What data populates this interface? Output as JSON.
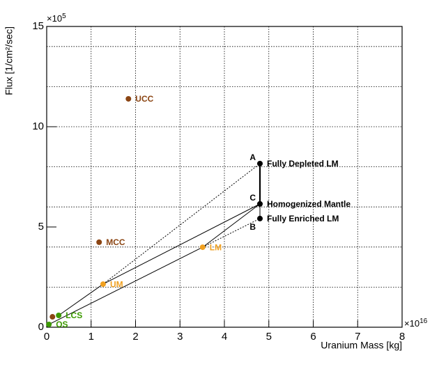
{
  "chart_data": {
    "type": "scatter",
    "x_label": "Uranium Mass [kg]",
    "y_label": "Flux [1/cm²/sec]",
    "x_multiplier": {
      "base": "×10",
      "exp": "16"
    },
    "y_multiplier": {
      "base": "×10",
      "exp": "5"
    },
    "xlim": [
      0,
      8
    ],
    "xticks": [
      0,
      1,
      2,
      3,
      4,
      5,
      6,
      7,
      8
    ],
    "ylim": [
      0,
      15
    ],
    "yticks": [
      0,
      5,
      10,
      15
    ],
    "y_grid": [
      2,
      4,
      6,
      8,
      10,
      12,
      14
    ],
    "grid": true,
    "points": [
      {
        "label": "UCC",
        "x": 1.84,
        "y": 11.39,
        "color": "#8b4513"
      },
      {
        "label": "MCC",
        "x": 1.18,
        "y": 4.24,
        "color": "#8b4513"
      },
      {
        "label": null,
        "x": 0.13,
        "y": 0.52,
        "color": "#8b4513"
      },
      {
        "label": "LCS",
        "x": 0.27,
        "y": 0.59,
        "color": "#3c9a00"
      },
      {
        "label": "OS",
        "x": 0.05,
        "y": 0.14,
        "color": "#3c9a00"
      },
      {
        "label": "UM",
        "x": 1.27,
        "y": 2.15,
        "color": "#f0a020"
      },
      {
        "label": "LM",
        "x": 3.51,
        "y": 3.99,
        "color": "#f0a020"
      },
      {
        "letter": "A",
        "label": "Fully Depleted LM",
        "x": 4.8,
        "y": 8.16,
        "color": "#000000"
      },
      {
        "letter": "C",
        "label": "Homogenized Mantle",
        "x": 4.8,
        "y": 6.15,
        "color": "#000000"
      },
      {
        "letter": "B",
        "label": "Fully Enriched LM",
        "x": 4.8,
        "y": 5.42,
        "color": "#000000"
      }
    ]
  }
}
